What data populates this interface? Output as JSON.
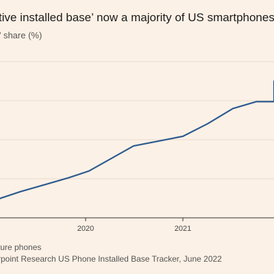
{
  "title": "tive installed base’ now a majority of US smartphones",
  "subtitle": "” share (%)",
  "footnotes": [
    "ture phones",
    "rpoint Research US Phone Installed Base Tracker, June 2022"
  ],
  "chart_data": {
    "type": "line",
    "x": [
      "2019-03",
      "2019-06",
      "2019-09",
      "2019-12",
      "2020-03",
      "2020-06",
      "2020-09",
      "2020-12",
      "2021-03",
      "2021-06",
      "2021-09",
      "2021-12"
    ],
    "y": [
      12.4,
      16.8,
      21.2,
      25.6,
      30.0,
      46.0,
      52.2,
      60.2,
      70.0,
      74.4,
      74.4,
      87.6
    ],
    "x_tick_labels": [
      "2020",
      "2021"
    ],
    "grid": true,
    "colors": {
      "line": "#2c5a8f",
      "grid": "#e8dccf",
      "axis": "#333333"
    }
  }
}
